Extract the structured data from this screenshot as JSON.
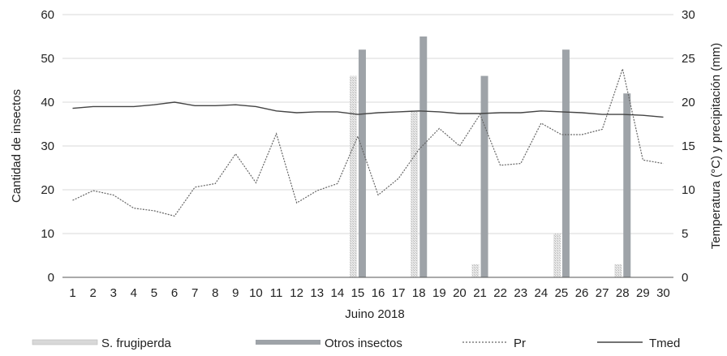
{
  "chart_data": {
    "type": "bar",
    "xlabel": "Juino 2018",
    "ylabel_left": "Cantidad de insectos",
    "ylabel_right": "Temperatura (°C) y precipitación (mm)",
    "ylim_left": [
      0,
      60
    ],
    "ylim_right": [
      0,
      30
    ],
    "yticks_left": [
      "0",
      "10",
      "20",
      "30",
      "40",
      "50",
      "60"
    ],
    "yticks_right": [
      "0",
      "5",
      "10",
      "15",
      "20",
      "25",
      "30"
    ],
    "grid": true,
    "legend_position": "bottom",
    "categories": [
      "1",
      "2",
      "3",
      "4",
      "5",
      "6",
      "7",
      "8",
      "9",
      "10",
      "11",
      "12",
      "13",
      "14",
      "15",
      "16",
      "17",
      "18",
      "19",
      "20",
      "21",
      "22",
      "23",
      "24",
      "25",
      "26",
      "27",
      "28",
      "29",
      "30"
    ],
    "series": [
      {
        "name": "S. frugiperda",
        "kind": "bar",
        "axis": "left",
        "color": "#d8d8d8",
        "values": [
          0,
          0,
          0,
          0,
          0,
          0,
          0,
          0,
          0,
          0,
          0,
          0,
          0,
          0,
          46,
          0,
          0,
          38,
          0,
          0,
          3,
          0,
          0,
          0,
          10,
          0,
          0,
          3,
          0,
          0
        ]
      },
      {
        "name": "Otros insectos",
        "kind": "bar",
        "axis": "left",
        "color": "#9ea3a8",
        "values": [
          0,
          0,
          0,
          0,
          0,
          0,
          0,
          0,
          0,
          0,
          0,
          0,
          0,
          0,
          52,
          0,
          0,
          55,
          0,
          0,
          46,
          0,
          0,
          0,
          52,
          0,
          0,
          42,
          0,
          0
        ]
      },
      {
        "name": "Pr",
        "kind": "line",
        "axis": "right",
        "style": "dotted",
        "color": "#666666",
        "values": [
          8.8,
          9.9,
          9.4,
          7.9,
          7.6,
          7,
          10.3,
          10.7,
          14.1,
          10.8,
          16.4,
          8.5,
          9.9,
          10.7,
          16.1,
          9.4,
          11.3,
          14.6,
          17,
          15,
          18.6,
          12.8,
          13,
          17.6,
          16.3,
          16.3,
          16.9,
          23.8,
          13.4,
          13
        ]
      },
      {
        "name": "Tmed",
        "kind": "line",
        "axis": "right",
        "style": "solid",
        "color": "#444444",
        "values": [
          19.3,
          19.5,
          19.5,
          19.5,
          19.7,
          20,
          19.6,
          19.6,
          19.7,
          19.5,
          19,
          18.8,
          18.9,
          18.9,
          18.6,
          18.8,
          18.9,
          19,
          18.9,
          18.7,
          18.7,
          18.8,
          18.8,
          19,
          18.9,
          18.8,
          18.6,
          18.6,
          18.5,
          18.3
        ]
      }
    ]
  }
}
